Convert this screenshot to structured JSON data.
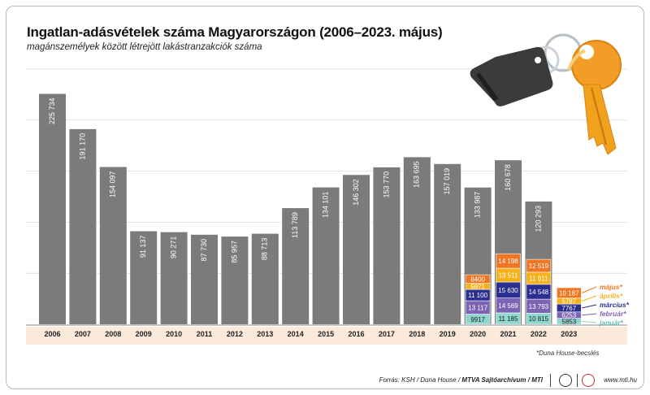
{
  "title": "Ingatlan-adásvételek száma Magyarországon (2006–2023. május)",
  "subtitle": "magánszemélyek között létrejött lakástranzakciók száma",
  "footnote": "*Duna House-becslés",
  "footer": {
    "source_prefix": "Forrás: KSH / Duna House / ",
    "source_bold": "MTVA Sajtóarchívum / MTI",
    "site": "www.mti.hu"
  },
  "colors": {
    "annual_bar": "#7b7b7b",
    "january": "#8ed6ce",
    "february": "#7d63b3",
    "march": "#2b2f8f",
    "april": "#f5b21b",
    "may": "#ef7622",
    "axis_band": "#fbe9d9"
  },
  "icon": "keys-with-tag-icon",
  "chart_data": {
    "type": "bar",
    "title": "Ingatlan-adásvételek száma Magyarországon (2006–2023. május)",
    "subtitle": "magánszemélyek között létrejött lakástranzakciók száma",
    "ylim": [
      0,
      250000
    ],
    "grid": true,
    "categories": [
      "2006",
      "2007",
      "2008",
      "2009",
      "2010",
      "2011",
      "2012",
      "2013",
      "2014",
      "2015",
      "2016",
      "2017",
      "2018",
      "2019",
      "2020",
      "2021",
      "2022",
      "2023"
    ],
    "annual": {
      "values": [
        225734,
        191170,
        154097,
        91137,
        90271,
        87730,
        85957,
        88713,
        113789,
        134101,
        146302,
        153770,
        163695,
        157019,
        133987,
        160678,
        120293,
        null
      ],
      "labels": [
        "225 734",
        "191 170",
        "154 097",
        "91 137",
        "90 271",
        "87 730",
        "85 957",
        "88 713",
        "113 789",
        "134 101",
        "146 302",
        "153 770",
        "163 695",
        "157 019",
        "133 987",
        "160 678",
        "120 293",
        ""
      ]
    },
    "monthly_legend": [
      "január*",
      "február*",
      "március*",
      "április*",
      "május*"
    ],
    "monthly": [
      {
        "year": "2020",
        "values": [
          9917,
          13117,
          11100,
          5971,
          8400
        ],
        "labels": [
          "9917",
          "13 117",
          "11 100",
          "5971",
          "8400"
        ]
      },
      {
        "year": "2021",
        "values": [
          11185,
          14569,
          15630,
          13511,
          14198
        ],
        "labels": [
          "11 185",
          "14 569",
          "15 630",
          "13 511",
          "14 198"
        ]
      },
      {
        "year": "2022",
        "values": [
          10815,
          13793,
          14548,
          11911,
          12519
        ],
        "labels": [
          "10 815",
          "13 793",
          "14 548",
          "11 911",
          "12 519"
        ]
      },
      {
        "year": "2023",
        "values": [
          5853,
          6253,
          7767,
          5787,
          10187
        ],
        "labels": [
          "5853",
          "6253",
          "7767",
          "5787",
          "10 187"
        ]
      }
    ]
  }
}
